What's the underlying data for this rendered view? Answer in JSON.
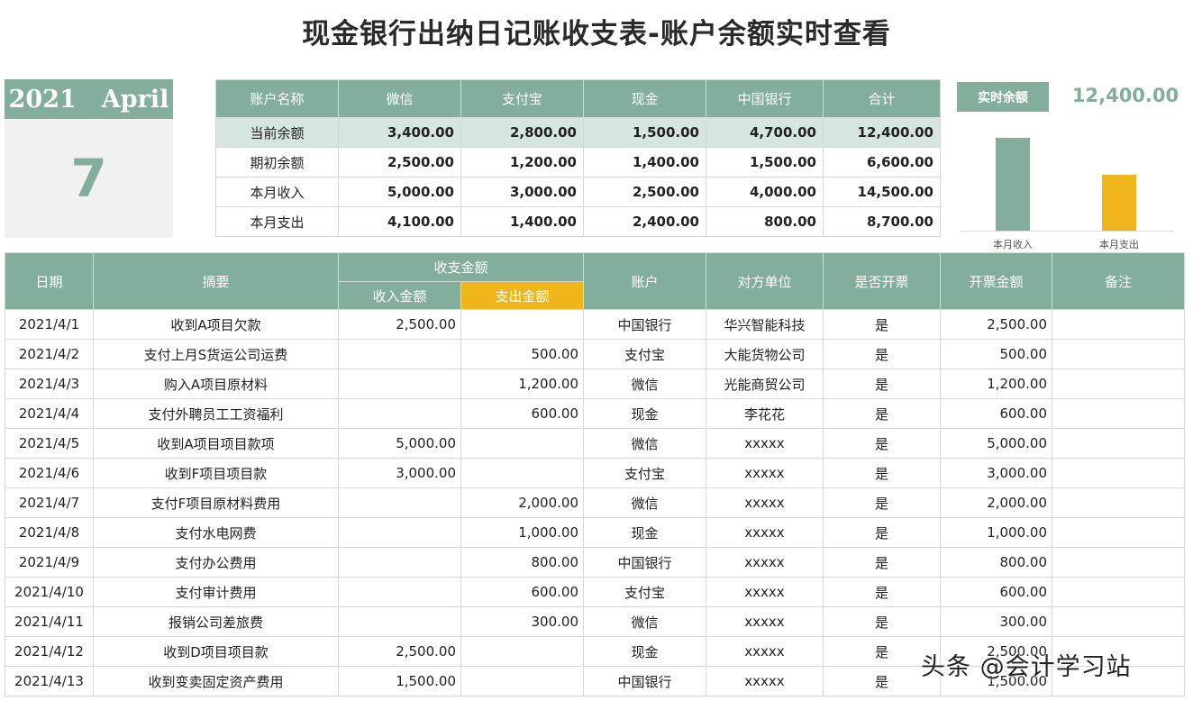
{
  "title": "现金银行出纳日记账收支表-账户余额实时查看",
  "calendar": {
    "year": "2021",
    "month": "April",
    "day": "7"
  },
  "summary": {
    "headers": [
      "账户名称",
      "微信",
      "支付宝",
      "现金",
      "中国银行",
      "合计"
    ],
    "rows": [
      [
        "当前余额",
        "3,400.00",
        "2,800.00",
        "1,500.00",
        "4,700.00",
        "12,400.00"
      ],
      [
        "期初余额",
        "2,500.00",
        "1,200.00",
        "1,400.00",
        "1,500.00",
        "6,600.00"
      ],
      [
        "本月收入",
        "5,000.00",
        "3,000.00",
        "2,500.00",
        "4,000.00",
        "14,500.00"
      ],
      [
        "本月支出",
        "4,100.00",
        "1,400.00",
        "2,400.00",
        "800.00",
        "8,700.00"
      ]
    ]
  },
  "balance": {
    "label": "实时余额",
    "value": "12,400.00"
  },
  "chart_data": {
    "type": "bar",
    "categories": [
      "本月收入",
      "本月支出"
    ],
    "values": [
      14500,
      8700
    ],
    "colors": [
      "#82ae9b",
      "#f1b51c"
    ]
  },
  "ledger": {
    "headers": {
      "date": "日期",
      "summary": "摘要",
      "amount_group": "收支金额",
      "income": "收入金额",
      "expense": "支出金额",
      "account": "账户",
      "counterparty": "对方单位",
      "invoiced": "是否开票",
      "invoice_amount": "开票金额",
      "note": "备注"
    },
    "rows": [
      [
        "2021/4/1",
        "收到A项目欠款",
        "2,500.00",
        "",
        "中国银行",
        "华兴智能科技",
        "是",
        "2,500.00",
        ""
      ],
      [
        "2021/4/2",
        "支付上月S货运公司运费",
        "",
        "500.00",
        "支付宝",
        "大能货物公司",
        "是",
        "500.00",
        ""
      ],
      [
        "2021/4/3",
        "购入A项目原材料",
        "",
        "1,200.00",
        "微信",
        "光能商贸公司",
        "是",
        "1,200.00",
        ""
      ],
      [
        "2021/4/4",
        "支付外聘员工工资福利",
        "",
        "600.00",
        "现金",
        "李花花",
        "是",
        "600.00",
        ""
      ],
      [
        "2021/4/5",
        "收到A项目项目款项",
        "5,000.00",
        "",
        "微信",
        "xxxxx",
        "是",
        "5,000.00",
        ""
      ],
      [
        "2021/4/6",
        "收到F项目项目款",
        "3,000.00",
        "",
        "支付宝",
        "xxxxx",
        "是",
        "3,000.00",
        ""
      ],
      [
        "2021/4/7",
        "支付F项目原材料费用",
        "",
        "2,000.00",
        "微信",
        "xxxxx",
        "是",
        "2,000.00",
        ""
      ],
      [
        "2021/4/8",
        "支付水电网费",
        "",
        "1,000.00",
        "现金",
        "xxxxx",
        "是",
        "1,000.00",
        ""
      ],
      [
        "2021/4/9",
        "支付办公费用",
        "",
        "800.00",
        "中国银行",
        "xxxxx",
        "是",
        "800.00",
        ""
      ],
      [
        "2021/4/10",
        "支付审计费用",
        "",
        "600.00",
        "支付宝",
        "xxxxx",
        "是",
        "600.00",
        ""
      ],
      [
        "2021/4/11",
        "报销公司差旅费",
        "",
        "300.00",
        "微信",
        "xxxxx",
        "是",
        "300.00",
        ""
      ],
      [
        "2021/4/12",
        "收到D项目项目款",
        "2,500.00",
        "",
        "现金",
        "xxxxx",
        "是",
        "2,500.00",
        ""
      ],
      [
        "2021/4/13",
        "收到变卖固定资产费用",
        "1,500.00",
        "",
        "中国银行",
        "xxxxx",
        "是",
        "1,500.00",
        ""
      ]
    ]
  },
  "watermark": "头条 @会计学习站"
}
